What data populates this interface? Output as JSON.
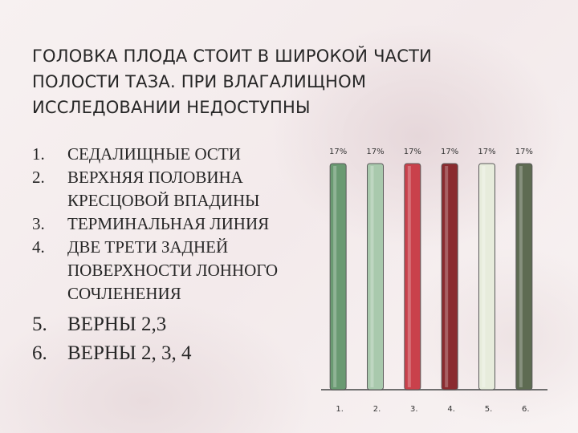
{
  "slide": {
    "title_lines": [
      "ГОЛОВКА ПЛОДА СТОИТ В ШИРОКОЙ ЧАСТИ",
      "ПОЛОСТИ ТАЗА. ПРИ ВЛАГАЛИЩНОМ",
      "ИССЛЕДОВАНИИ НЕДОСТУПНЫ"
    ],
    "options": [
      {
        "num": "1.",
        "lines": [
          "СЕДАЛИЩНЫЕ ОСТИ"
        ]
      },
      {
        "num": "2.",
        "lines": [
          "ВЕРХНЯЯ ПОЛОВИНА",
          "КРЕСЦОВОЙ ВПАДИНЫ"
        ]
      },
      {
        "num": "3.",
        "lines": [
          "ТЕРМИНАЛЬНАЯ ЛИНИЯ"
        ]
      },
      {
        "num": "4.",
        "lines": [
          "ДВЕ ТРЕТИ ЗАДНЕЙ",
          "ПОВЕРХНОСТИ ЛОННОГО",
          "СОЧЛЕНЕНИЯ"
        ]
      },
      {
        "num": "5.",
        "lines": [
          "ВЕРНЫ 2,3"
        ]
      },
      {
        "num": "6.",
        "lines": [
          "ВЕРНЫ 2, 3, 4"
        ]
      }
    ]
  },
  "chart_data": {
    "type": "bar",
    "categories": [
      "1.",
      "2.",
      "3.",
      "4.",
      "5.",
      "6."
    ],
    "values": [
      17,
      17,
      17,
      17,
      17,
      17
    ],
    "value_labels": [
      "17%",
      "17%",
      "17%",
      "17%",
      "17%",
      "17%"
    ],
    "ylim": [
      0,
      17
    ],
    "colors": [
      "#6a9a72",
      "#a9c9ad",
      "#c9414b",
      "#8a2b2f",
      "#e7ecdc",
      "#5e6b52"
    ],
    "grid": false,
    "legend": "none"
  }
}
